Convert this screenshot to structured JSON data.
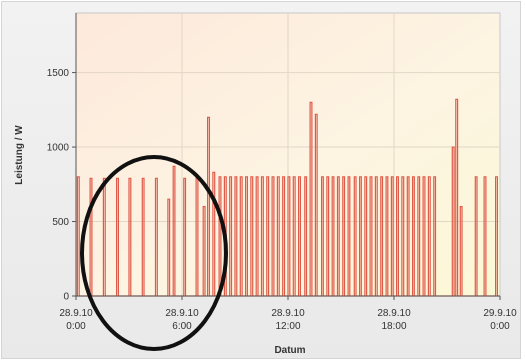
{
  "chart_data": {
    "type": "line",
    "title": "",
    "xlabel": "Datum",
    "ylabel": "Leistung / W",
    "ylim": [
      0,
      1900
    ],
    "yticks": [
      0,
      500,
      1000,
      1500
    ],
    "xticks": [
      {
        "t": 0,
        "line1": "28.9.10",
        "line2": "0:00"
      },
      {
        "t": 6,
        "line1": "28.9.10",
        "line2": "6:00"
      },
      {
        "t": 12,
        "line1": "28.9.10",
        "line2": "12:00"
      },
      {
        "t": 18,
        "line1": "28.9.10",
        "line2": "18:00"
      },
      {
        "t": 24,
        "line1": "29.9.10",
        "line2": "0:00"
      }
    ],
    "x_unit": "hours since 28.9.10 0:00",
    "grid": true,
    "series": [
      {
        "color": "#e05a4a",
        "pulses": [
          [
            0.08,
            800
          ],
          [
            0.8,
            790
          ],
          [
            1.55,
            790
          ],
          [
            2.3,
            790
          ],
          [
            3.0,
            790
          ],
          [
            3.75,
            790
          ],
          [
            4.5,
            790
          ],
          [
            5.2,
            650
          ],
          [
            5.5,
            870
          ],
          [
            6.1,
            790
          ],
          [
            6.8,
            790
          ],
          [
            7.2,
            600
          ],
          [
            7.45,
            1200
          ],
          [
            7.75,
            830
          ],
          [
            8.1,
            800
          ],
          [
            8.4,
            800
          ],
          [
            8.7,
            800
          ],
          [
            9.0,
            800
          ],
          [
            9.3,
            800
          ],
          [
            9.6,
            800
          ],
          [
            9.9,
            800
          ],
          [
            10.2,
            800
          ],
          [
            10.5,
            800
          ],
          [
            10.8,
            800
          ],
          [
            11.1,
            800
          ],
          [
            11.4,
            800
          ],
          [
            11.7,
            800
          ],
          [
            12.0,
            800
          ],
          [
            12.3,
            800
          ],
          [
            12.6,
            800
          ],
          [
            12.95,
            800
          ],
          [
            13.25,
            1300
          ],
          [
            13.55,
            1220
          ],
          [
            13.9,
            800
          ],
          [
            14.2,
            800
          ],
          [
            14.5,
            800
          ],
          [
            14.8,
            800
          ],
          [
            15.1,
            800
          ],
          [
            15.4,
            800
          ],
          [
            15.75,
            800
          ],
          [
            16.05,
            800
          ],
          [
            16.35,
            800
          ],
          [
            16.65,
            800
          ],
          [
            16.95,
            800
          ],
          [
            17.25,
            800
          ],
          [
            17.55,
            800
          ],
          [
            17.85,
            800
          ],
          [
            18.15,
            800
          ],
          [
            18.45,
            800
          ],
          [
            18.75,
            800
          ],
          [
            19.05,
            800
          ],
          [
            19.35,
            800
          ],
          [
            19.65,
            800
          ],
          [
            19.95,
            800
          ],
          [
            20.25,
            800
          ],
          [
            21.3,
            1000
          ],
          [
            21.5,
            1320
          ],
          [
            21.75,
            600
          ],
          [
            22.6,
            800
          ],
          [
            23.1,
            800
          ],
          [
            23.75,
            800
          ]
        ],
        "pulse_width_hours": 0.1
      }
    ]
  },
  "annotation": {
    "shape": "ellipse",
    "color": "#111111"
  }
}
